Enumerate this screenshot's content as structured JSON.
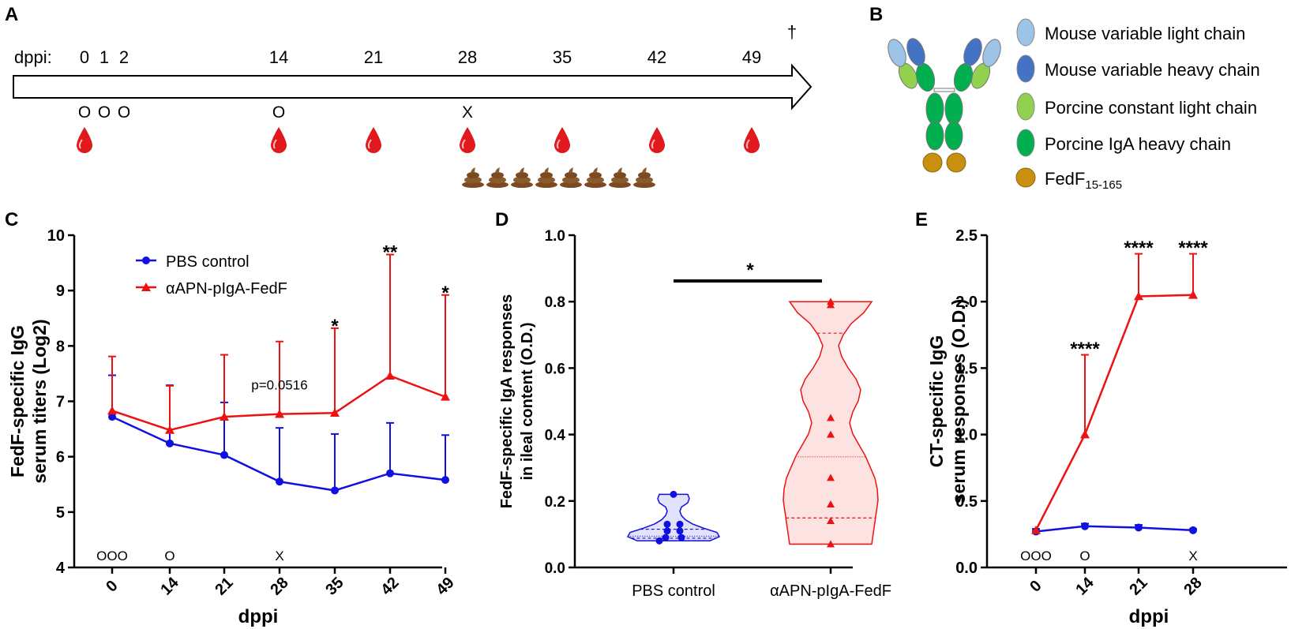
{
  "panelA": {
    "letter": "A",
    "axis_label": "dppi:",
    "dagger": "†",
    "timepoints": [
      {
        "day": "0",
        "marker": "O",
        "blood": true,
        "feces": false
      },
      {
        "day": "1",
        "marker": "O",
        "blood": false,
        "feces": false
      },
      {
        "day": "2",
        "marker": "O",
        "blood": false,
        "feces": false
      },
      {
        "day": "14",
        "marker": "O",
        "blood": true,
        "feces": false
      },
      {
        "day": "21",
        "marker": "",
        "blood": true,
        "feces": false
      },
      {
        "day": "28",
        "marker": "X",
        "blood": true,
        "feces": true
      },
      {
        "day": "35",
        "marker": "",
        "blood": true,
        "feces": false
      },
      {
        "day": "42",
        "marker": "",
        "blood": true,
        "feces": false
      },
      {
        "day": "49",
        "marker": "",
        "blood": true,
        "feces": false
      }
    ],
    "feces_count": 8
  },
  "panelB": {
    "letter": "B",
    "legend": [
      {
        "label": "Mouse variable light chain",
        "color": "#9DC3E6"
      },
      {
        "label": "Mouse variable heavy chain",
        "color": "#4472C4"
      },
      {
        "label": "Porcine constant light chain",
        "color": "#92D050"
      },
      {
        "label": "Porcine IgA heavy chain",
        "color": "#00B050"
      },
      {
        "label": "FedF",
        "subscript": "15-165",
        "color": "#C8900E"
      }
    ]
  },
  "colors": {
    "pbs": "#1010E0",
    "apn": "#EE1111"
  },
  "chart_data": [
    {
      "panel": "C",
      "type": "line",
      "ylabel_line1": "FedF-specific IgG",
      "ylabel_line2": "serum titers (Log2)",
      "xlabel": "dppi",
      "x": [
        "0",
        "14",
        "21",
        "28",
        "35",
        "42",
        "49"
      ],
      "ylim": [
        4,
        10
      ],
      "yticks": [
        "4",
        "5",
        "6",
        "7",
        "8",
        "9",
        "10"
      ],
      "series": [
        {
          "name": "PBS control",
          "marker": "circle",
          "values": [
            6.72,
            6.24,
            6.03,
            5.55,
            5.39,
            5.7,
            5.58
          ],
          "error": [
            0.75,
            1.05,
            0.95,
            0.97,
            1.02,
            0.91,
            0.81
          ]
        },
        {
          "name": "αAPN-pIgA-FedF",
          "marker": "triangle",
          "values": [
            6.83,
            6.48,
            6.72,
            6.77,
            6.79,
            7.46,
            7.08
          ],
          "error": [
            0.98,
            0.8,
            1.12,
            1.31,
            1.53,
            2.19,
            1.84
          ]
        }
      ],
      "annotations": [
        {
          "x_index": 3,
          "text": "p=0.0516",
          "y": 7.3
        },
        {
          "x_index": 4,
          "text": "*",
          "y": 8.42
        },
        {
          "x_index": 5,
          "text": "**",
          "y": 9.75
        },
        {
          "x_index": 6,
          "text": "*",
          "y": 9.02
        }
      ],
      "bottom_marks": [
        {
          "x_index": 0,
          "text": "OOO"
        },
        {
          "x_index": 1,
          "text": "O"
        },
        {
          "x_index": 3,
          "text": "X"
        }
      ]
    },
    {
      "panel": "D",
      "type": "violin",
      "ylabel_line1": "FedF-specific IgA responses",
      "ylabel_line2": "in ileal content (O.D.)",
      "categories": [
        "PBS control",
        "αAPN-pIgA-FedF"
      ],
      "ylim": [
        0,
        1
      ],
      "yticks": [
        "0.0",
        "0.2",
        "0.4",
        "0.6",
        "0.8",
        "1.0"
      ],
      "groups": [
        {
          "name": "PBS control",
          "points": [
            0.22,
            0.13,
            0.13,
            0.11,
            0.11,
            0.09,
            0.09,
            0.08
          ],
          "median": 0.094,
          "q1": 0.088,
          "q3": 0.115
        },
        {
          "name": "αAPN-pIgA-FedF",
          "points": [
            0.8,
            0.79,
            0.45,
            0.4,
            0.27,
            0.19,
            0.14,
            0.07
          ],
          "median": 0.333,
          "q1": 0.149,
          "q3": 0.705
        }
      ],
      "significance": "*"
    },
    {
      "panel": "E",
      "type": "line",
      "ylabel_line1": "CT-specific IgG",
      "ylabel_line2": "serum responses (O.D.)",
      "xlabel": "dppi",
      "x": [
        "0",
        "14",
        "21",
        "28"
      ],
      "ylim": [
        0,
        2.5
      ],
      "yticks": [
        "0.0",
        "0.5",
        "1.0",
        "1.5",
        "2.0",
        "2.5"
      ],
      "series": [
        {
          "name": "PBS control",
          "marker": "circle",
          "values": [
            0.27,
            0.31,
            0.3,
            0.28
          ],
          "error": [
            0.02,
            0.02,
            0.02,
            0.01
          ]
        },
        {
          "name": "αAPN-pIgA-FedF",
          "marker": "triangle",
          "values": [
            0.28,
            1.0,
            2.04,
            2.05
          ],
          "error": [
            0.0,
            0.6,
            0.32,
            0.31
          ]
        }
      ],
      "annotations": [
        {
          "x_index": 1,
          "text": "****",
          "y": 1.67
        },
        {
          "x_index": 2,
          "text": "****",
          "y": 2.43
        },
        {
          "x_index": 3,
          "text": "****",
          "y": 2.43
        }
      ],
      "bottom_marks": [
        {
          "x_index": 0,
          "text": "OOO"
        },
        {
          "x_index": 1,
          "text": "O"
        },
        {
          "x_index": 3,
          "text": "X"
        }
      ]
    }
  ]
}
